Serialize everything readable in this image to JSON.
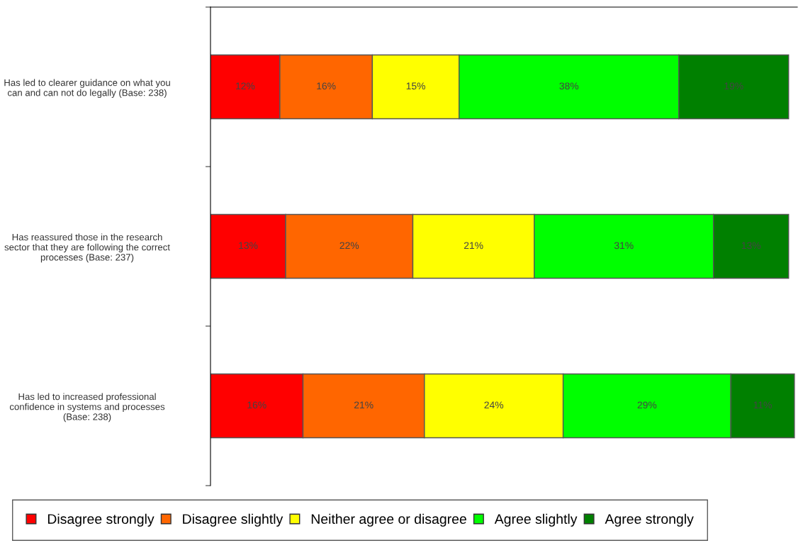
{
  "chart_data": {
    "type": "bar",
    "orientation": "horizontal",
    "stacked": true,
    "legend": "bottom",
    "grid": false,
    "tick_labels": "y",
    "categories": [
      "Has led to clearer guidance on what you can and can not do legally (Base: 238)",
      "Has reassured those in the research sector that they are following the correct processes (Base: 237)",
      "Has led to increased professional confidence in systems and processes (Base: 238)"
    ],
    "series": [
      {
        "name": "Disagree strongly",
        "color": "#ff0000",
        "values": [
          12,
          13,
          16
        ],
        "value_labels": [
          "12%",
          "13%",
          "16%"
        ]
      },
      {
        "name": "Disagree slightly",
        "color": "#ff6600",
        "values": [
          16,
          22,
          21
        ],
        "value_labels": [
          "16%",
          "22%",
          "21%"
        ]
      },
      {
        "name": "Neither agree or disagree",
        "color": "#ffff00",
        "values": [
          15,
          21,
          24
        ],
        "value_labels": [
          "15%",
          "21%",
          "24%"
        ]
      },
      {
        "name": "Agree slightly",
        "color": "#00ff00",
        "values": [
          38,
          31,
          29
        ],
        "value_labels": [
          "38%",
          "31%",
          "29%"
        ]
      },
      {
        "name": "Agree strongly",
        "color": "#008000",
        "values": [
          19,
          13,
          11
        ],
        "value_labels": [
          "19%",
          "13%",
          "11%"
        ]
      }
    ]
  }
}
